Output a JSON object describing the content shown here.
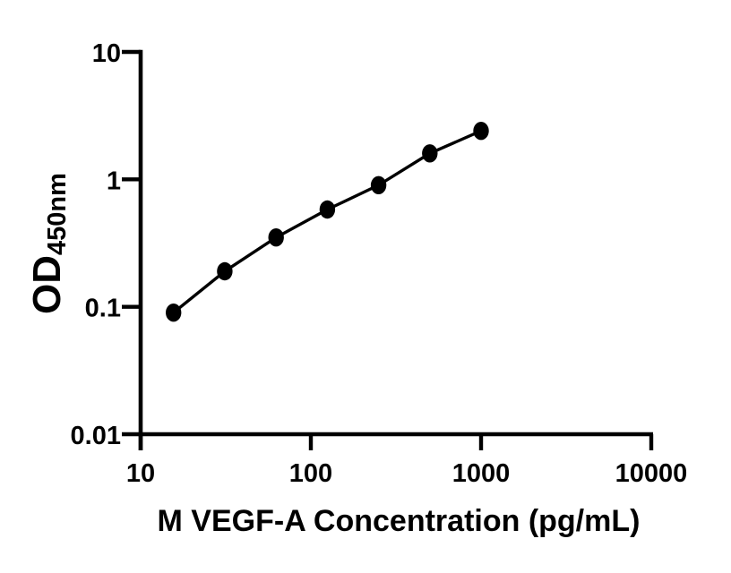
{
  "chart_data": {
    "type": "scatter",
    "title": "",
    "xlabel": "M VEGF-A Concentration (pg/mL)",
    "ylabel_main": "OD",
    "ylabel_sub": "450nm",
    "x_scale": "log",
    "y_scale": "log",
    "xlim": [
      10,
      10000
    ],
    "ylim": [
      0.01,
      10
    ],
    "x_ticks": [
      10,
      100,
      1000,
      10000
    ],
    "y_ticks": [
      10,
      1,
      0.1,
      0.01
    ],
    "x_tick_labels": [
      "10",
      "100",
      "1000",
      "10000"
    ],
    "y_tick_labels": [
      "10",
      "1",
      "0.1",
      "0.01"
    ],
    "grid": false,
    "legend": "none",
    "series": [
      {
        "marker": "filled-circle",
        "color": "#000000",
        "line_color": "#000000",
        "x": [
          15.6,
          31.2,
          62.5,
          125,
          250,
          500,
          1000
        ],
        "y": [
          0.09,
          0.19,
          0.35,
          0.58,
          0.9,
          1.6,
          2.4
        ]
      }
    ],
    "colors": {
      "foreground": "#000000",
      "background": "#ffffff"
    }
  }
}
